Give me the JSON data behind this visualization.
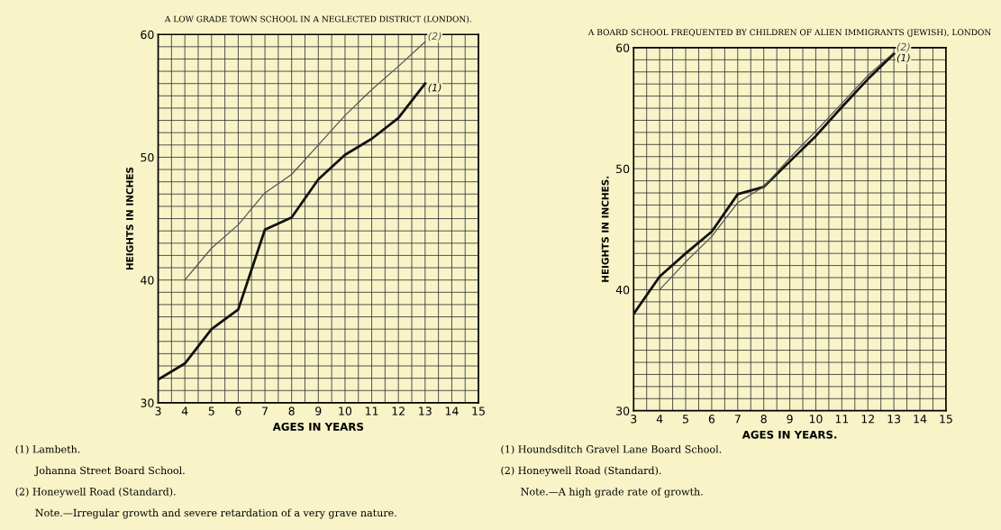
{
  "chart_data": [
    {
      "type": "line",
      "title": "A LOW GRADE TOWN SCHOOL IN A NEGLECTED DISTRICT (LONDON).",
      "xlabel": "AGES IN YEARS",
      "ylabel": "HEIGHTS IN INCHES",
      "series": [
        {
          "name": "(1)",
          "color": "#111111",
          "x": [
            3,
            4,
            5,
            6,
            7,
            8,
            9,
            10,
            11,
            12,
            13
          ],
          "values": [
            31.9,
            33.2,
            36.0,
            37.6,
            44.1,
            45.1,
            48.2,
            50.2,
            51.5,
            53.2,
            56.0
          ]
        },
        {
          "name": "(2)",
          "color": "#555555",
          "x": [
            4,
            5,
            6,
            7,
            8,
            9,
            10,
            11,
            12,
            13
          ],
          "values": [
            40.0,
            42.6,
            44.5,
            47.1,
            48.6,
            51.0,
            53.4,
            55.5,
            57.4,
            59.4
          ]
        }
      ],
      "xlim": [
        3,
        15
      ],
      "ylim": [
        30,
        60
      ],
      "xticks": [
        3,
        {
          "value": 3.5,
          "label": null
        },
        4,
        {
          "value": 4.5,
          "label": null
        },
        5,
        {
          "value": 5.5,
          "label": null
        },
        6,
        {
          "value": 6.5,
          "label": null
        },
        7,
        {
          "value": 7.5,
          "label": null
        },
        8,
        {
          "value": 8.5,
          "label": null
        },
        9,
        {
          "value": 9.5,
          "label": null
        },
        10,
        {
          "value": 10.5,
          "label": null
        },
        11,
        {
          "value": 11.5,
          "label": null
        },
        12,
        {
          "value": 12.5,
          "label": null
        },
        13,
        {
          "value": 13.5,
          "label": null
        },
        14,
        {
          "value": 14.5,
          "label": null
        },
        15
      ],
      "yticks": [
        30,
        {
          "value": 31,
          "label": null
        },
        {
          "value": 32,
          "label": null
        },
        {
          "value": 33,
          "label": null
        },
        {
          "value": 34,
          "label": null
        },
        {
          "value": 35,
          "label": null
        },
        {
          "value": 36,
          "label": null
        },
        {
          "value": 37,
          "label": null
        },
        {
          "value": 38,
          "label": null
        },
        {
          "value": 39,
          "label": null
        },
        40,
        {
          "value": 41,
          "label": null
        },
        {
          "value": 42,
          "label": null
        },
        {
          "value": 43,
          "label": null
        },
        {
          "value": 44,
          "label": null
        },
        {
          "value": 45,
          "label": null
        },
        {
          "value": 46,
          "label": null
        },
        {
          "value": 47,
          "label": null
        },
        {
          "value": 48,
          "label": null
        },
        {
          "value": 49,
          "label": null
        },
        50,
        {
          "value": 51,
          "label": null
        },
        {
          "value": 52,
          "label": null
        },
        {
          "value": 53,
          "label": null
        },
        {
          "value": 54,
          "label": null
        },
        {
          "value": 55,
          "label": null
        },
        {
          "value": 56,
          "label": null
        },
        {
          "value": 57,
          "label": null
        },
        {
          "value": 58,
          "label": null
        },
        {
          "value": 59,
          "label": null
        },
        60
      ],
      "grid": true,
      "marker": "none",
      "line_style": "solid",
      "annotations": [
        "(1) Lambeth.",
        "Johanna Street Board School.",
        "(2) Honeywell Road (Standard).",
        "Note.—Irregular growth and severe retardation of a very grave nature."
      ]
    },
    {
      "type": "line",
      "title": "A BOARD SCHOOL FREQUENTED BY CHILDREN OF ALIEN IMMIGRANTS (JEWISH), LONDON",
      "xlabel": "AGES IN YEARS.",
      "ylabel": "HEIGHTS IN INCHES.",
      "series": [
        {
          "name": "(1)",
          "color": "#111111",
          "x": [
            3,
            4,
            5,
            6,
            7,
            8,
            9,
            10,
            11,
            12,
            13
          ],
          "values": [
            38.0,
            41.1,
            43.0,
            44.8,
            47.9,
            48.5,
            50.6,
            52.7,
            55.1,
            57.4,
            59.5
          ]
        },
        {
          "name": "(2)",
          "color": "#555555",
          "x": [
            4,
            5,
            6,
            7,
            8,
            9,
            10,
            11,
            12,
            13
          ],
          "values": [
            40.0,
            42.3,
            44.4,
            47.2,
            48.5,
            50.9,
            53.1,
            55.4,
            57.7,
            59.6
          ]
        }
      ],
      "xlim": [
        3,
        15
      ],
      "ylim": [
        30,
        60
      ],
      "xticks": [
        3,
        {
          "value": 3.5,
          "label": null
        },
        4,
        {
          "value": 4.5,
          "label": null
        },
        5,
        {
          "value": 5.5,
          "label": null
        },
        6,
        {
          "value": 6.5,
          "label": null
        },
        7,
        {
          "value": 7.5,
          "label": null
        },
        8,
        {
          "value": 8.5,
          "label": null
        },
        9,
        {
          "value": 9.5,
          "label": null
        },
        10,
        {
          "value": 10.5,
          "label": null
        },
        11,
        {
          "value": 11.5,
          "label": null
        },
        12,
        {
          "value": 12.5,
          "label": null
        },
        13,
        {
          "value": 13.5,
          "label": null
        },
        14,
        {
          "value": 14.5,
          "label": null
        },
        15
      ],
      "yticks": [
        30,
        {
          "value": 31,
          "label": null
        },
        {
          "value": 32,
          "label": null
        },
        {
          "value": 33,
          "label": null
        },
        {
          "value": 34,
          "label": null
        },
        {
          "value": 35,
          "label": null
        },
        {
          "value": 36,
          "label": null
        },
        {
          "value": 37,
          "label": null
        },
        {
          "value": 38,
          "label": null
        },
        {
          "value": 39,
          "label": null
        },
        40,
        {
          "value": 41,
          "label": null
        },
        {
          "value": 42,
          "label": null
        },
        {
          "value": 43,
          "label": null
        },
        {
          "value": 44,
          "label": null
        },
        {
          "value": 45,
          "label": null
        },
        {
          "value": 46,
          "label": null
        },
        {
          "value": 47,
          "label": null
        },
        {
          "value": 48,
          "label": null
        },
        {
          "value": 49,
          "label": null
        },
        50,
        {
          "value": 51,
          "label": null
        },
        {
          "value": 52,
          "label": null
        },
        {
          "value": 53,
          "label": null
        },
        {
          "value": 54,
          "label": null
        },
        {
          "value": 55,
          "label": null
        },
        {
          "value": 56,
          "label": null
        },
        {
          "value": 57,
          "label": null
        },
        {
          "value": 58,
          "label": null
        },
        {
          "value": 59,
          "label": null
        },
        60
      ],
      "grid": true,
      "marker": "none",
      "line_style": "solid",
      "annotations": [
        "(1) Houndsditch Gravel Lane Board School.",
        "(2) Honeywell Road (Standard).",
        "Note.—A high grade rate of growth."
      ]
    }
  ]
}
